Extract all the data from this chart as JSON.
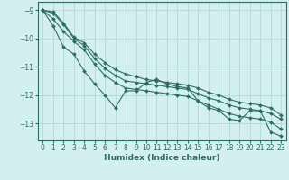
{
  "xlabel": "Humidex (Indice chaleur)",
  "ylabel": "",
  "background_color": "#d4efef",
  "grid_color": "#afd8d8",
  "line_color": "#2a6e65",
  "xlim": [
    -0.5,
    23.5
  ],
  "ylim": [
    -13.6,
    -8.7
  ],
  "xticks": [
    0,
    1,
    2,
    3,
    4,
    5,
    6,
    7,
    8,
    9,
    10,
    11,
    12,
    13,
    14,
    15,
    16,
    17,
    18,
    19,
    20,
    21,
    22,
    23
  ],
  "yticks": [
    -9,
    -10,
    -11,
    -12,
    -13
  ],
  "series": [
    {
      "x": [
        0,
        1,
        2,
        3,
        4,
        5,
        6,
        7,
        8,
        9,
        10,
        11,
        12,
        13,
        14,
        15,
        16,
        17,
        18,
        19,
        20,
        21,
        22,
        23
      ],
      "y": [
        -9.0,
        -9.05,
        -9.45,
        -9.95,
        -10.15,
        -10.55,
        -10.85,
        -11.1,
        -11.25,
        -11.35,
        -11.45,
        -11.5,
        -11.55,
        -11.6,
        -11.65,
        -11.75,
        -11.9,
        -12.0,
        -12.15,
        -12.25,
        -12.3,
        -12.35,
        -12.45,
        -12.7
      ]
    },
    {
      "x": [
        0,
        1,
        2,
        3,
        4,
        5,
        6,
        7,
        8,
        9,
        10,
        11,
        12,
        13,
        14,
        15,
        16,
        17,
        18,
        19,
        20,
        21,
        22,
        23
      ],
      "y": [
        -9.0,
        -9.1,
        -9.5,
        -10.0,
        -10.25,
        -10.7,
        -11.05,
        -11.3,
        -11.5,
        -11.55,
        -11.6,
        -11.65,
        -11.7,
        -11.75,
        -11.8,
        -11.95,
        -12.1,
        -12.2,
        -12.35,
        -12.45,
        -12.5,
        -12.55,
        -12.65,
        -12.85
      ]
    },
    {
      "x": [
        0,
        1,
        2,
        3,
        4,
        5,
        6,
        7,
        8,
        9,
        10,
        11,
        12,
        13,
        14,
        15,
        16,
        17,
        18,
        19,
        20,
        21,
        22,
        23
      ],
      "y": [
        -9.0,
        -9.3,
        -9.75,
        -10.1,
        -10.4,
        -10.9,
        -11.3,
        -11.55,
        -11.75,
        -11.8,
        -11.85,
        -11.9,
        -11.95,
        -12.0,
        -12.05,
        -12.2,
        -12.35,
        -12.5,
        -12.65,
        -12.75,
        -12.8,
        -12.85,
        -12.95,
        -13.2
      ]
    },
    {
      "x": [
        0,
        1,
        2,
        3,
        4,
        5,
        6,
        7,
        8,
        9,
        10,
        11,
        12,
        13,
        14,
        15,
        16,
        17,
        18,
        19,
        20,
        21,
        22,
        23
      ],
      "y": [
        -9.0,
        -9.55,
        -10.3,
        -10.55,
        -11.15,
        -11.6,
        -12.0,
        -12.45,
        -11.85,
        -11.85,
        -11.55,
        -11.45,
        -11.6,
        -11.7,
        -11.75,
        -12.2,
        -12.45,
        -12.55,
        -12.85,
        -12.9,
        -12.55,
        -12.55,
        -13.3,
        -13.45
      ]
    }
  ]
}
